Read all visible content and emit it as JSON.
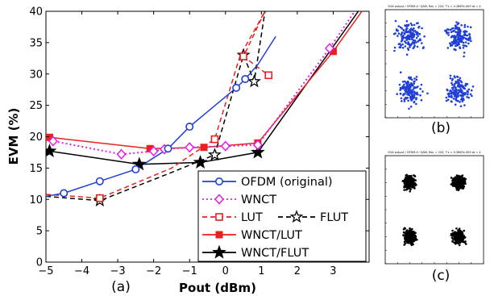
{
  "chart_data": [
    {
      "type": "line",
      "panel_label": "(a)",
      "xlabel": "Pout (dBm)",
      "ylabel": "EVM (%)",
      "xlim": [
        -5,
        4
      ],
      "ylim": [
        0,
        40
      ],
      "xticks": [
        "−5",
        "−4",
        "−3",
        "−2",
        "−1",
        "0",
        "1",
        "2",
        "3"
      ],
      "yticks": [
        "0",
        "5",
        "10",
        "15",
        "20",
        "25",
        "30",
        "35",
        "40"
      ],
      "legend_placement": "lower-right",
      "series": [
        {
          "name": "OFDM (original)",
          "color": "#1f3fd6",
          "dash": "",
          "marker": "circle-open",
          "x": [
            -5,
            -4.5,
            -3.5,
            -2.5,
            -1.6,
            -1.0,
            0.3,
            0.55,
            0.9,
            1.4
          ],
          "y": [
            10.5,
            11.0,
            12.9,
            14.8,
            18.1,
            21.6,
            27.8,
            29.2,
            31.5,
            36.0
          ]
        },
        {
          "name": "WNCT",
          "color": "#e61ce6",
          "dash": "2,3",
          "marker": "diamond-open",
          "x": [
            -5,
            -4.8,
            -2.9,
            -2.0,
            -1.7,
            -1.0,
            0.0,
            0.9,
            2.9,
            3.6
          ],
          "y": [
            19.5,
            19.3,
            17.2,
            17.7,
            18.0,
            18.3,
            18.5,
            18.7,
            34.1,
            40.0
          ]
        },
        {
          "name": "LUT",
          "color": "#e82020",
          "dash": "6,4",
          "marker": "square-open",
          "x": [
            -5,
            -3.5,
            -1.5,
            -0.3,
            0.4,
            1.1,
            0.5,
            1.2
          ],
          "y": [
            10.8,
            10.2,
            15.0,
            19.6,
            32.8,
            40.0,
            32.8,
            29.8
          ]
        },
        {
          "name": "FLUT",
          "color": "#000000",
          "dash": "6,4",
          "marker": "star-open",
          "x": [
            -5,
            -3.5,
            -1.5,
            -0.3,
            0.5,
            0.8,
            1.1
          ],
          "y": [
            10.5,
            9.8,
            14.3,
            17.1,
            33.0,
            28.8,
            40.0
          ]
        },
        {
          "name": "WNCT/LUT",
          "color": "#e82020",
          "dash": "",
          "marker": "square-filled",
          "x": [
            -4.9,
            -2.1,
            -0.6,
            0.9,
            3.0,
            3.8
          ],
          "y": [
            19.9,
            18.1,
            18.3,
            19.0,
            33.6,
            40.0
          ]
        },
        {
          "name": "WNCT/FLUT",
          "color": "#000000",
          "dash": "",
          "marker": "star-filled",
          "x": [
            -4.9,
            -2.4,
            -0.7,
            0.9,
            3.7
          ],
          "y": [
            17.7,
            15.6,
            15.9,
            17.5,
            40.0
          ]
        }
      ]
    },
    {
      "type": "scatter",
      "panel_label": "(b)",
      "title": "SOA output / OFDM-4~QAM, Rac = 220, T's = 0.286?e-009 at = 4",
      "color": "#1f3fd6",
      "cluster_centers": [
        [
          -0.5,
          0.5
        ],
        [
          0.5,
          0.5
        ],
        [
          -0.5,
          -0.5
        ],
        [
          0.5,
          -0.5
        ]
      ],
      "spread": "wide"
    },
    {
      "type": "scatter",
      "panel_label": "(c)",
      "title": "SOA output / OFDM-4~QAM, Rac = 220, T's = 0.286?e-009 at = 4",
      "color": "#000000",
      "cluster_centers": [
        [
          -0.5,
          0.5
        ],
        [
          0.5,
          0.5
        ],
        [
          -0.5,
          -0.5
        ],
        [
          0.5,
          -0.5
        ]
      ],
      "spread": "tight"
    }
  ]
}
